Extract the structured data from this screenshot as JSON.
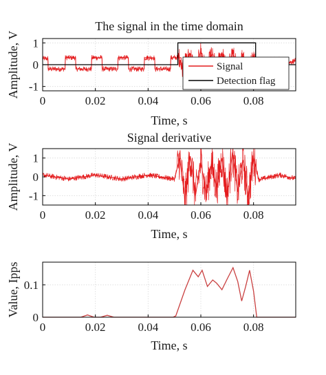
{
  "chart_data": [
    {
      "type": "line",
      "title": "The signal in the time domain",
      "xlabel": "Time, s",
      "ylabel": "Amplitude, V",
      "xlim": [
        0,
        0.096
      ],
      "ylim": [
        -1.2,
        1.2
      ],
      "xticks": [
        0,
        0.02,
        0.04,
        0.06,
        0.08
      ],
      "xtick_labels": [
        "0",
        "0.02",
        "0.04",
        "0.06",
        "0.08"
      ],
      "yticks": [
        -1,
        0,
        1
      ],
      "ytick_labels": [
        "-1",
        "0",
        "1"
      ],
      "grid": true,
      "legend_position": "right",
      "series": [
        {
          "name": "Signal",
          "color": "#e41a1c",
          "x": [
            0,
            0.002,
            0.0021,
            0.0085,
            0.0086,
            0.0125,
            0.0126,
            0.0185,
            0.0186,
            0.0225,
            0.0226,
            0.0285,
            0.0286,
            0.0325,
            0.0326,
            0.0385,
            0.0386,
            0.0425,
            0.0426,
            0.0485,
            0.0486,
            0.0525,
            0.0526,
            0.056,
            0.058,
            0.06,
            0.062,
            0.064,
            0.066,
            0.068,
            0.07,
            0.072,
            0.074,
            0.076,
            0.078,
            0.08,
            0.081,
            0.085,
            0.0851,
            0.09,
            0.0901,
            0.096
          ],
          "y": [
            0.28,
            0.28,
            -0.2,
            -0.2,
            0.32,
            0.32,
            -0.2,
            -0.2,
            0.32,
            0.32,
            -0.2,
            -0.2,
            0.32,
            0.32,
            -0.2,
            -0.2,
            0.32,
            0.32,
            -0.2,
            -0.2,
            0.32,
            0.32,
            -0.2,
            0.5,
            -0.35,
            0.65,
            -0.3,
            0.45,
            -0.1,
            0.55,
            -0.35,
            0.6,
            -0.25,
            0.5,
            -0.3,
            0.4,
            -0.18,
            -0.18,
            0.25,
            0.25,
            -0.05,
            0.2
          ]
        },
        {
          "name": "Detection flag",
          "color": "#000000",
          "x": [
            0,
            0.0513,
            0.0513,
            0.0808,
            0.0808,
            0.096
          ],
          "y": [
            0,
            0,
            1,
            1,
            0,
            0
          ]
        }
      ]
    },
    {
      "type": "line",
      "title": "Signal derivative",
      "xlabel": "Time, s",
      "ylabel": "Amplitude, V",
      "xlim": [
        0,
        0.096
      ],
      "ylim": [
        -1.5,
        1.5
      ],
      "xticks": [
        0,
        0.02,
        0.04,
        0.06,
        0.08
      ],
      "xtick_labels": [
        "0",
        "0.02",
        "0.04",
        "0.06",
        "0.08"
      ],
      "yticks": [
        -1,
        0,
        1
      ],
      "ytick_labels": [
        "-1",
        "0",
        "1"
      ],
      "grid": true,
      "series": [
        {
          "color": "#e41a1c",
          "x": [
            0,
            0.01,
            0.02,
            0.03,
            0.04,
            0.05,
            0.052,
            0.054,
            0.056,
            0.058,
            0.06,
            0.062,
            0.064,
            0.066,
            0.068,
            0.07,
            0.072,
            0.074,
            0.076,
            0.078,
            0.08,
            0.082,
            0.09,
            0.096
          ],
          "y": [
            0.1,
            -0.12,
            0.1,
            -0.12,
            0.1,
            -0.12,
            1.0,
            -1.2,
            1.1,
            -1.0,
            0.8,
            -0.9,
            0.7,
            -0.6,
            1.0,
            -1.0,
            1.3,
            -0.8,
            0.9,
            -1.1,
            1.0,
            -0.15,
            0.1,
            -0.1
          ]
        }
      ]
    },
    {
      "type": "line",
      "xlabel": "Time, s",
      "ylabel": "Value, Ipps",
      "xlim": [
        0,
        0.096
      ],
      "ylim": [
        0,
        0.17
      ],
      "xticks": [
        0,
        0.02,
        0.04,
        0.06,
        0.08
      ],
      "xtick_labels": [
        "0",
        "0.02",
        "0.04",
        "0.06",
        "0.08"
      ],
      "yticks": [
        0,
        0.1
      ],
      "ytick_labels": [
        "0",
        "0.1"
      ],
      "grid": true,
      "series": [
        {
          "color": "#c94040",
          "x": [
            0,
            0.0145,
            0.017,
            0.0195,
            0.022,
            0.0245,
            0.027,
            0.0495,
            0.0505,
            0.054,
            0.057,
            0.059,
            0.0605,
            0.0625,
            0.0645,
            0.066,
            0.068,
            0.07,
            0.0722,
            0.074,
            0.0755,
            0.077,
            0.0785,
            0.08,
            0.0812,
            0.083,
            0.096
          ],
          "y": [
            0,
            0,
            0.007,
            0,
            0,
            0.006,
            0,
            0,
            0.004,
            0.085,
            0.145,
            0.125,
            0.145,
            0.095,
            0.115,
            0.105,
            0.085,
            0.118,
            0.153,
            0.11,
            0.05,
            0.095,
            0.145,
            0.08,
            0,
            0,
            0
          ]
        }
      ]
    }
  ]
}
